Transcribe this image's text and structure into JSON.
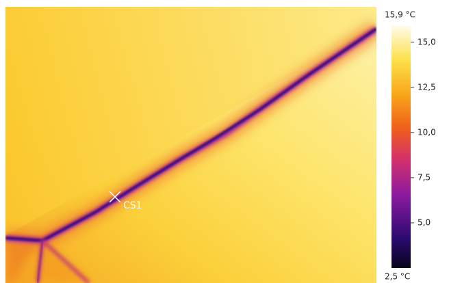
{
  "thermal_view": {
    "spot_marker": {
      "label": "CS1"
    },
    "scale": {
      "max": {
        "value": 15.9,
        "label": "15,9 °C"
      },
      "min": {
        "value": 2.5,
        "label": "2,5 °C"
      },
      "ticks": [
        {
          "value": 15.0,
          "label": "15,0"
        },
        {
          "value": 12.5,
          "label": "12,5"
        },
        {
          "value": 10.0,
          "label": "10,0"
        },
        {
          "value": 7.5,
          "label": "7,5"
        },
        {
          "value": 5.0,
          "label": "5,0"
        }
      ]
    }
  }
}
